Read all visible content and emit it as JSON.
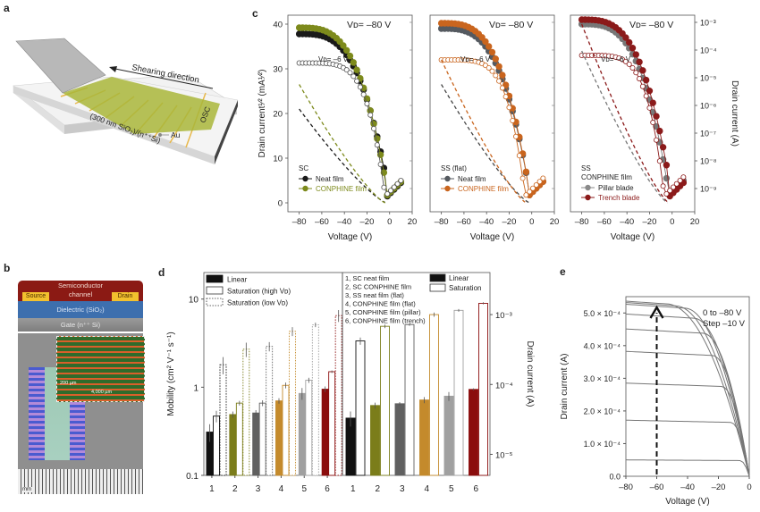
{
  "figure": {
    "panels": {
      "a": {
        "label": "a",
        "shearing_label": "Shearing direction",
        "osc_label": "OSC",
        "au_label": "Au",
        "substrate_label": "(300 nm SiO₂)/(n⁺⁺Si)"
      },
      "b": {
        "label": "b",
        "semiconductor_label": "Semiconductor",
        "channel_label": "channel",
        "source_label": "Source",
        "drain_label": "Drain",
        "dielectric_label": "Dielectric (SiO₂)",
        "gate_label": "Gate (n⁺⁺ Si)",
        "scale_200": "200 µm",
        "scale_4000": "4,000 µm",
        "ruler_unit": "mm",
        "colors": {
          "semiconductor": "#8b1a14",
          "source_drain": "#f2c12e",
          "dielectric": "#3d6fae",
          "gate": "#8c8c8c"
        }
      },
      "c": {
        "label": "c"
      },
      "d": {
        "label": "d"
      },
      "e": {
        "label": "e"
      }
    }
  },
  "chart_data": [
    {
      "id": "c1",
      "type": "line",
      "panel": "c",
      "subtitle": "SC",
      "xlabel": "Voltage (V)",
      "ylabel": "Drain current¹ᐟ² (mA¹ᐟ²)",
      "ylabel_text": "Drain current",
      "ylabel_unit": "(mA",
      "xlim": [
        -90,
        20
      ],
      "ylim": [
        -2,
        42
      ],
      "xticks": [
        -80,
        -60,
        -40,
        -20,
        0,
        20
      ],
      "yticks": [
        0,
        10,
        20,
        30,
        40
      ],
      "annot_vd_high": "Vᴅ= –80 V",
      "annot_vd_low": "Vᴅ= –6 V",
      "legend": [
        {
          "name": "Neat film",
          "color": "#1a1a1a"
        },
        {
          "name": "CONPHINE film",
          "color": "#7d8a1c"
        }
      ],
      "series": [
        {
          "name": "Neat film V_D=-80 V (sqrt)",
          "color": "#1a1a1a",
          "filled": true,
          "sat": 37.8,
          "vth": -2,
          "kind": "sat"
        },
        {
          "name": "CONPHINE film V_D=-80 V (sqrt)",
          "color": "#7d8a1c",
          "filled": true,
          "sat": 39.2,
          "vth": -3,
          "kind": "sat"
        },
        {
          "name": "Neat film V_D=-6 V (log)",
          "color": "#555555",
          "filled": false,
          "sat": 31.3,
          "vth": -4,
          "kind": "lin"
        },
        {
          "name": "Neat film fit (dashed)",
          "color": "#1a1a1a",
          "dashed": true,
          "y_at_-80": 21,
          "x_at_0": -3
        },
        {
          "name": "CONPHINE fit (dashed)",
          "color": "#7d8a1c",
          "dashed": true,
          "y_at_-80": 26.5,
          "x_at_0": -4
        }
      ]
    },
    {
      "id": "c2",
      "type": "line",
      "panel": "c",
      "subtitle": "SS (flat)",
      "xlabel": "Voltage (V)",
      "xlim": [
        -90,
        20
      ],
      "ylim": [
        -2,
        42
      ],
      "xticks": [
        -80,
        -60,
        -40,
        -20,
        0,
        20
      ],
      "annot_vd_high": "Vᴅ= –80 V",
      "annot_vd_low": "Vᴅ= –6 V",
      "legend": [
        {
          "name": "Neat film",
          "color": "#555a60"
        },
        {
          "name": "CONPHINE film",
          "color": "#c9651e"
        }
      ],
      "series": [
        {
          "name": "Neat film V_D=-80 V",
          "color": "#555a60",
          "filled": true,
          "sat": 39.0,
          "vth": -3,
          "kind": "sat"
        },
        {
          "name": "CONPHINE film V_D=-80 V",
          "color": "#c9651e",
          "filled": true,
          "sat": 40.2,
          "vth": -3,
          "kind": "sat"
        },
        {
          "name": "CONPHINE V_D=-6 V",
          "color": "#c9651e",
          "filled": false,
          "sat": 32.0,
          "vth": -6,
          "kind": "lin"
        },
        {
          "name": "Neat fit (dashed)",
          "color": "#444444",
          "dashed": true,
          "y_at_-80": 26.5,
          "x_at_0": -2
        },
        {
          "name": "CONPHINE fit (dashed)",
          "color": "#c9651e",
          "dashed": true,
          "y_at_-80": 32,
          "x_at_0": -5
        }
      ]
    },
    {
      "id": "c3",
      "type": "line",
      "panel": "c",
      "subtitle": "SS",
      "subtitle2": "CONPHINE film",
      "xlabel": "Voltage (V)",
      "y2label": "Drain current (A)",
      "xlim": [
        -90,
        20
      ],
      "ylim": [
        -2,
        42
      ],
      "xticks": [
        -80,
        -60,
        -40,
        -20,
        0,
        20
      ],
      "y2ticks": [
        "10⁻³",
        "10⁻⁴",
        "10⁻⁵",
        "10⁻⁶",
        "10⁻⁷",
        "10⁻⁸",
        "10⁻⁹"
      ],
      "annot_vd_high": "Vᴅ= –80 V",
      "annot_vd_low": "Vᴅ= –6 V",
      "legend": [
        {
          "name": "Pillar blade",
          "color": "#8a8a8a"
        },
        {
          "name": "Trench blade",
          "color": "#8b1a1a"
        }
      ],
      "series": [
        {
          "name": "Pillar blade V_D=-80 V",
          "color": "#777777",
          "filled": true,
          "sat": 40.0,
          "vth": -4,
          "kind": "sat"
        },
        {
          "name": "Trench blade V_D=-80 V",
          "color": "#8b1a1a",
          "filled": true,
          "sat": 41.0,
          "vth": -2,
          "kind": "sat"
        },
        {
          "name": "Pillar V_D=-6 V",
          "color": "#8b1a1a",
          "filled": false,
          "sat": 33.0,
          "vth": -7,
          "kind": "lin"
        },
        {
          "name": "Pillar fit (dashed)",
          "color": "#777777",
          "dashed": true,
          "y_at_-80": 34,
          "x_at_0": -4
        },
        {
          "name": "Trench fit (dashed)",
          "color": "#8b1a1a",
          "dashed": true,
          "y_at_-80": 40,
          "x_at_0": -3
        }
      ]
    },
    {
      "id": "d1",
      "type": "bar",
      "panel": "d",
      "ylabel": "Mobility (cm² V⁻¹ s⁻¹)",
      "yscale": "log",
      "ylim": [
        0.1,
        20
      ],
      "yticks": [
        "0.1",
        "1",
        "10"
      ],
      "categories": [
        "1",
        "2",
        "3",
        "4",
        "5",
        "6"
      ],
      "legend": [
        "Linear",
        "Saturation (high Vᴅ)",
        "Saturation (low Vᴅ)"
      ],
      "colors": [
        "#111111",
        "#7b7d1a",
        "#606060",
        "#c48a2c",
        "#a0a0a0",
        "#8b0d0d"
      ],
      "series": [
        {
          "name": "Linear",
          "values": [
            0.31,
            0.49,
            0.51,
            0.7,
            0.85,
            0.95
          ],
          "err": [
            0.07,
            0.04,
            0.04,
            0.05,
            0.13,
            0.07
          ]
        },
        {
          "name": "Saturation (high V_D)",
          "values": [
            0.47,
            0.66,
            0.66,
            1.05,
            1.2,
            1.5
          ],
          "err": [
            0.07,
            0.04,
            0.05,
            0.08,
            0.08,
            0.05
          ]
        },
        {
          "name": "Saturation (low V_D)",
          "values": [
            1.8,
            2.7,
            2.9,
            4.3,
            5.1,
            6.5
          ],
          "err": [
            0.4,
            0.5,
            0.35,
            0.5,
            0.3,
            1.0
          ]
        }
      ]
    },
    {
      "id": "d2",
      "type": "bar",
      "panel": "d",
      "y2label": "Drain current (A)",
      "yscale": "log",
      "ylim": [
        5e-06,
        0.004
      ],
      "yticks": [
        "10⁻⁵",
        "10⁻⁴",
        "10⁻³"
      ],
      "categories": [
        "1",
        "2",
        "3",
        "4",
        "5",
        "6"
      ],
      "legend": [
        "Linear",
        "Saturation"
      ],
      "sample_list": [
        "1, SC neat film",
        "2, SC CONPHINE film",
        "3, SS neat film (flat)",
        "4, CONPHINE film (flat)",
        "5, CONPHINE film (pillar)",
        "6, CONPHINE film (trench)"
      ],
      "series": [
        {
          "name": "Linear",
          "values": [
            3.3e-05,
            5e-05,
            5.3e-05,
            6e-05,
            6.8e-05,
            8.5e-05
          ],
          "err": [
            8e-06,
            5e-06,
            3e-06,
            6e-06,
            1e-05,
            3e-06
          ]
        },
        {
          "name": "Saturation",
          "values": [
            0.00042,
            0.00068,
            0.00072,
            0.001,
            0.00115,
            0.00145
          ],
          "err": [
            5e-05,
            4e-05,
            3e-05,
            7e-05,
            5e-05,
            5e-05
          ]
        }
      ]
    },
    {
      "id": "e",
      "type": "line",
      "panel": "e",
      "xlabel": "Voltage (V)",
      "ylabel": "Drain current (A)",
      "xlim": [
        -80,
        0
      ],
      "ylim": [
        0,
        0.00055
      ],
      "xticks": [
        "–80",
        "–60",
        "–40",
        "–20",
        "0"
      ],
      "yticks": [
        "0.0",
        "1.0 × 10⁻⁴",
        "2.0 × 10⁻⁴",
        "3.0 × 10⁻⁴",
        "4.0 × 10⁻⁴",
        "5.0 × 10⁻⁴"
      ],
      "annotation_line1": "0 to –80 V",
      "annotation_line2": "Step –10 V",
      "arrow_at_x": -60,
      "saturation_levels": [
        4.8e-05,
        0.000165,
        0.000275,
        0.00037,
        0.000438,
        0.000484,
        0.000515,
        0.000522,
        0.000528
      ]
    }
  ]
}
